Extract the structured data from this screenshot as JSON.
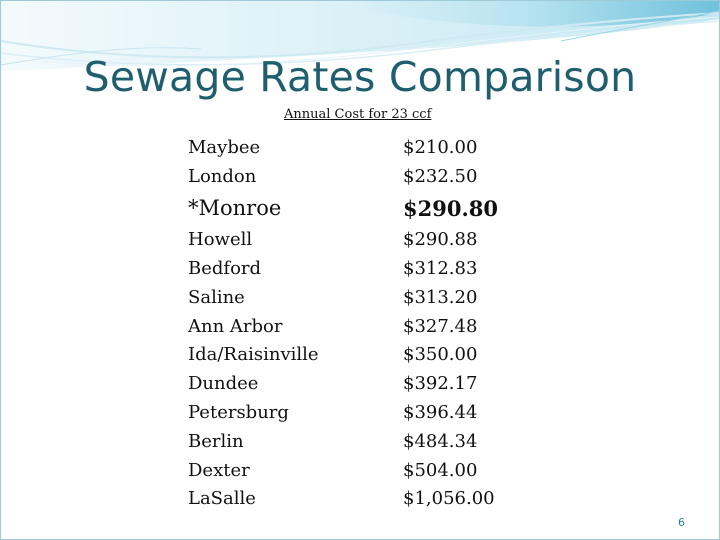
{
  "slide": {
    "title": "Sewage Rates Comparison",
    "subtitle": "Annual Cost for 23 ccf",
    "page_number": "6",
    "colors": {
      "title": "#1f5e6e",
      "accent": "#6fc1dc",
      "page_number": "#2e7d9a"
    }
  },
  "table": {
    "rows": [
      {
        "city": "Maybee",
        "cost": "$210.00"
      },
      {
        "city": "London",
        "cost": "$232.50"
      },
      {
        "city": "*Monroe",
        "cost": "$290.80",
        "highlight": true
      },
      {
        "city": "Howell",
        "cost": "$290.88"
      },
      {
        "city": "Bedford",
        "cost": "$312.83"
      },
      {
        "city": "Saline",
        "cost": "$313.20"
      },
      {
        "city": "Ann Arbor",
        "cost": "$327.48"
      },
      {
        "city": "Ida/Raisinville",
        "cost": "$350.00"
      },
      {
        "city": "Dundee",
        "cost": "$392.17"
      },
      {
        "city": "Petersburg",
        "cost": "$396.44"
      },
      {
        "city": "Berlin",
        "cost": "$484.34"
      },
      {
        "city": "Dexter",
        "cost": "$504.00"
      },
      {
        "city": "LaSalle",
        "cost": "$1,056.00"
      }
    ]
  }
}
